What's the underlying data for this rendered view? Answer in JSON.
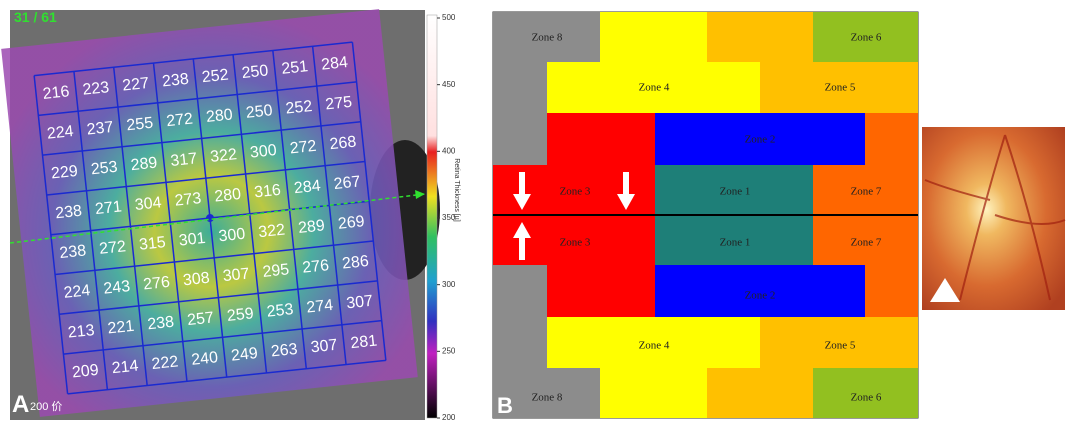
{
  "panel_a": {
    "counter": "31 / 61",
    "label": "A",
    "scale": "200 价",
    "grid": [
      [
        216,
        223,
        227,
        238,
        252,
        250,
        251,
        284
      ],
      [
        224,
        237,
        255,
        272,
        280,
        250,
        252,
        275
      ],
      [
        229,
        253,
        289,
        317,
        322,
        300,
        272,
        268
      ],
      [
        238,
        271,
        304,
        273,
        280,
        316,
        284,
        267
      ],
      [
        238,
        272,
        315,
        301,
        300,
        322,
        289,
        269
      ],
      [
        224,
        243,
        276,
        308,
        307,
        295,
        276,
        286
      ],
      [
        213,
        221,
        238,
        257,
        259,
        253,
        274,
        307
      ],
      [
        209,
        214,
        222,
        240,
        249,
        263,
        307,
        281
      ]
    ],
    "colorbar": {
      "label": "Retina Thickness [µ]",
      "lim": [
        200,
        500
      ],
      "ticks": [
        500,
        450,
        400,
        350,
        300,
        250,
        200
      ]
    }
  },
  "panel_b": {
    "label": "B",
    "zones": [
      "Zone 8",
      "Zone 6",
      "Zone 4",
      "Zone 5",
      "Zone 2",
      "Zone 3",
      "Zone 1",
      "Zone 7",
      "Zone 3",
      "Zone 1",
      "Zone 7",
      "Zone 2",
      "Zone 4",
      "Zone 5",
      "Zone 8",
      "Zone 6"
    ]
  }
}
